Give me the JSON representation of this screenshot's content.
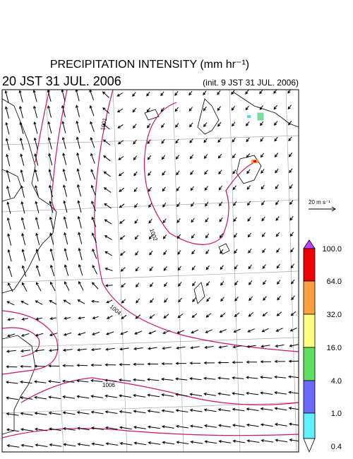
{
  "header": {
    "title": "PRECIPITATION INTENSITY (mm hr⁻¹)",
    "valid_time": "20 JST 31 JUL. 2006",
    "init_time": "(init. 9 JST 31 JUL. 2006)"
  },
  "reference_vector": {
    "label": "20 m s⁻¹"
  },
  "contour_labels": [
    "1001",
    "1002",
    "1004",
    "1006"
  ],
  "colorbar": {
    "labels": [
      "100.0",
      "64.0",
      "32.0",
      "16.0",
      "4.0",
      "1.0",
      "0.4"
    ]
  }
}
